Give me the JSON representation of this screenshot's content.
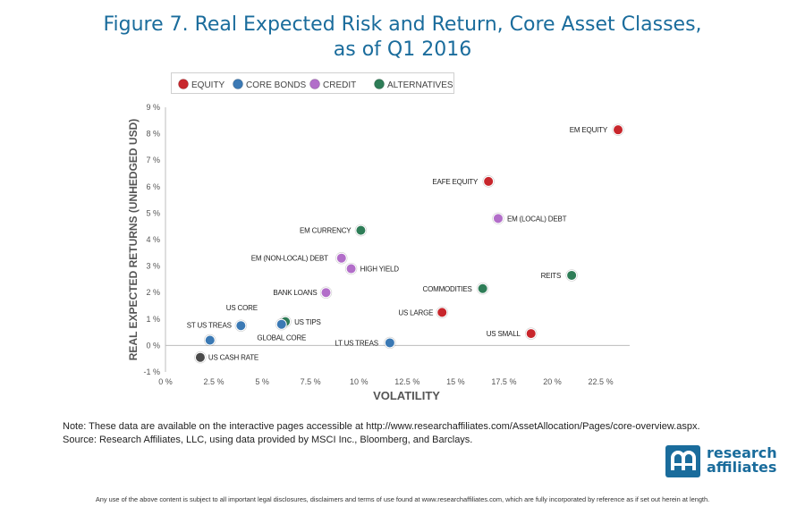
{
  "header": {
    "title_line1": "Figure 7. Real Expected Risk and Return, Core Asset Classes,",
    "title_line2": "as of Q1 2016"
  },
  "colors": {
    "title": "#1a6c9c",
    "equity": "#c8262c",
    "core_bonds": "#3b79b4",
    "credit": "#b26ec9",
    "alternatives": "#2e7d57",
    "cash": "#4a4a4a"
  },
  "chart_data": {
    "type": "scatter",
    "title": "Figure 7. Real Expected Risk and Return, Core Asset Classes, as of Q1 2016",
    "xlabel": "VOLATILITY",
    "ylabel": "REAL EXPECTED RETURNS (UNHEDGED USD)",
    "xlim": [
      0,
      24
    ],
    "ylim": [
      -1,
      9
    ],
    "x_ticks": [
      "0 %",
      "2.5 %",
      "5 %",
      "7.5 %",
      "10 %",
      "12.5 %",
      "15 %",
      "17.5 %",
      "20 %",
      "22.5 %"
    ],
    "y_ticks": [
      "-1 %",
      "0 %",
      "1 %",
      "2 %",
      "3 %",
      "4 %",
      "5 %",
      "6 %",
      "7 %",
      "8 %",
      "9 %"
    ],
    "grid": false,
    "legend_position": "top-left",
    "legend": [
      {
        "key": "equity",
        "label": "EQUITY"
      },
      {
        "key": "core_bonds",
        "label": "CORE BONDS"
      },
      {
        "key": "credit",
        "label": "CREDIT"
      },
      {
        "key": "alternatives",
        "label": "ALTERNATIVES"
      }
    ],
    "points": [
      {
        "label": "EM EQUITY",
        "group": "equity",
        "x": 23.4,
        "y": 8.15
      },
      {
        "label": "EAFE EQUITY",
        "group": "equity",
        "x": 16.7,
        "y": 6.2
      },
      {
        "label": "US LARGE",
        "group": "equity",
        "x": 14.3,
        "y": 1.25
      },
      {
        "label": "US SMALL",
        "group": "equity",
        "x": 18.9,
        "y": 0.45
      },
      {
        "label": "EM (LOCAL) DEBT",
        "group": "credit",
        "x": 17.2,
        "y": 4.8
      },
      {
        "label": "EM (NON-LOCAL) DEBT",
        "group": "credit",
        "x": 9.1,
        "y": 3.3
      },
      {
        "label": "HIGH YIELD",
        "group": "credit",
        "x": 9.6,
        "y": 2.9
      },
      {
        "label": "BANK LOANS",
        "group": "credit",
        "x": 8.3,
        "y": 2.0
      },
      {
        "label": "EM CURRENCY",
        "group": "alternatives",
        "x": 10.1,
        "y": 4.35
      },
      {
        "label": "REITS",
        "group": "alternatives",
        "x": 21.0,
        "y": 2.65
      },
      {
        "label": "COMMODITIES",
        "group": "alternatives",
        "x": 16.4,
        "y": 2.15
      },
      {
        "label": "US TIPS",
        "group": "alternatives",
        "x": 6.2,
        "y": 0.9
      },
      {
        "label": "US CORE",
        "group": "core_bonds",
        "x": 3.9,
        "y": 0.75
      },
      {
        "label": "GLOBAL CORE",
        "group": "core_bonds",
        "x": 6.0,
        "y": 0.8
      },
      {
        "label": "ST US TREAS",
        "group": "core_bonds",
        "x": 2.3,
        "y": 0.2
      },
      {
        "label": "LT US TREAS",
        "group": "core_bonds",
        "x": 11.6,
        "y": 0.1
      },
      {
        "label": "US CASH RATE",
        "group": "cash",
        "x": 1.8,
        "y": -0.45
      }
    ]
  },
  "notes": {
    "line1": "Note: These data are available on the interactive pages accessible at http://www.researchaffiliates.com/AssetAllocation/Pages/core-overview.aspx.",
    "line2": "Source: Research Affiliates, LLC, using data provided by MSCI Inc., Bloomberg, and Barclays."
  },
  "logo": {
    "word1": "research",
    "word2": "affiliates"
  },
  "footer": {
    "disclaimer": "Any use of the above content is subject to all important legal disclosures, disclaimers and terms of use found at www.researchaffiliates.com, which are fully incorporated by reference as if set out herein at length."
  }
}
